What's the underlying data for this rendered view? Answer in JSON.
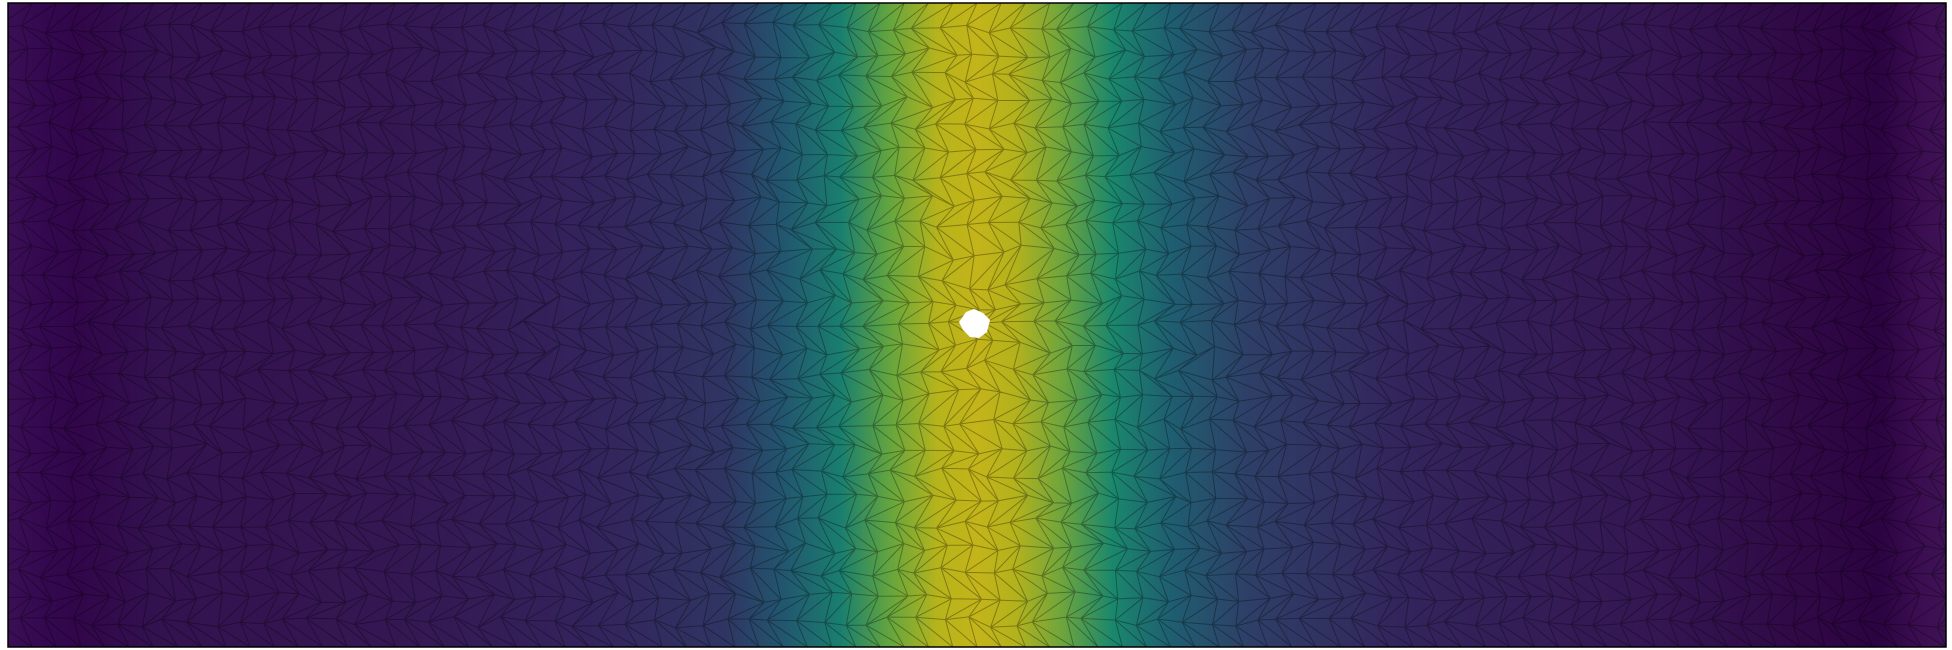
{
  "plot": {
    "type": "triangulated-mesh-field",
    "colormap": "viridis",
    "colors": {
      "background": "#ffffff",
      "border": "#000000",
      "mesh_edge": "#000000",
      "hole_fill": "#ffffff",
      "low": "#440154",
      "high": "#fde725"
    },
    "domain": {
      "x_range": [
        0,
        3
      ],
      "y_range": [
        0,
        1
      ]
    },
    "field": {
      "description_shape": "vertical band peaked near x=1.5, lowest near edges",
      "peak_x": 1.5,
      "peak_value": 0.8,
      "low_value": 0.0
    },
    "hole": {
      "center": [
        1.5,
        0.5
      ],
      "radius": 0.02
    },
    "mesh": {
      "edges_visible": true
    }
  }
}
